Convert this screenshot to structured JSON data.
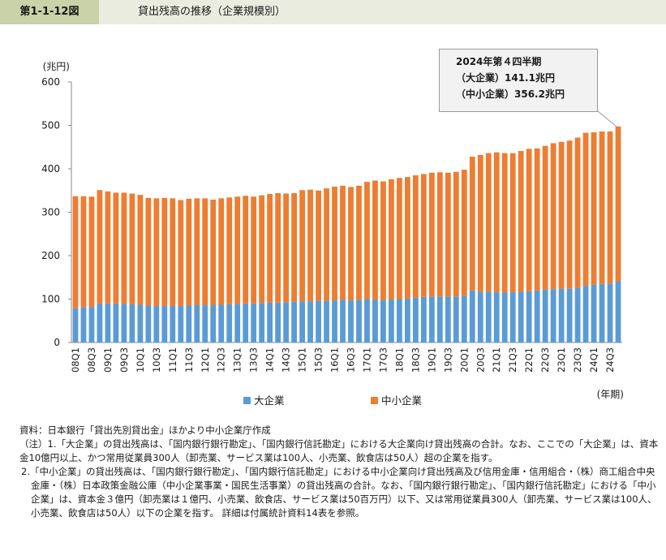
{
  "header": {
    "figure_no": "第1-1-12図",
    "title": "貸出残高の推移（企業規模別）"
  },
  "chart_data": {
    "type": "bar",
    "stacked": true,
    "ylabel": "(兆円)",
    "xlabel": "(年期)",
    "ylim": [
      0,
      600
    ],
    "yticks": [
      0,
      100,
      200,
      300,
      400,
      500,
      600
    ],
    "grid": false,
    "legend_position": "bottom",
    "categories": [
      "08Q1",
      "08Q2",
      "08Q3",
      "08Q4",
      "09Q1",
      "09Q2",
      "09Q3",
      "09Q4",
      "10Q1",
      "10Q2",
      "10Q3",
      "10Q4",
      "11Q1",
      "11Q2",
      "11Q3",
      "11Q4",
      "12Q1",
      "12Q2",
      "12Q3",
      "12Q4",
      "13Q1",
      "13Q2",
      "13Q3",
      "13Q4",
      "14Q1",
      "14Q2",
      "14Q3",
      "14Q4",
      "15Q1",
      "15Q2",
      "15Q3",
      "15Q4",
      "16Q1",
      "16Q2",
      "16Q3",
      "16Q4",
      "17Q1",
      "17Q2",
      "17Q3",
      "17Q4",
      "18Q1",
      "18Q2",
      "18Q3",
      "18Q4",
      "19Q1",
      "19Q2",
      "19Q3",
      "19Q4",
      "20Q1",
      "20Q2",
      "20Q3",
      "20Q4",
      "21Q1",
      "21Q2",
      "21Q3",
      "21Q4",
      "22Q1",
      "22Q2",
      "22Q3",
      "22Q4",
      "23Q1",
      "23Q2",
      "23Q3",
      "23Q4",
      "24Q1",
      "24Q2",
      "24Q3",
      "24Q4"
    ],
    "tick_labels": [
      "08Q1",
      "08Q3",
      "09Q1",
      "09Q3",
      "10Q1",
      "10Q3",
      "11Q1",
      "11Q3",
      "12Q1",
      "12Q3",
      "13Q1",
      "13Q3",
      "14Q1",
      "14Q3",
      "15Q1",
      "15Q3",
      "16Q1",
      "16Q3",
      "17Q1",
      "17Q3",
      "18Q1",
      "18Q3",
      "19Q1",
      "19Q3",
      "20Q1",
      "20Q3",
      "21Q1",
      "21Q3",
      "22Q1",
      "22Q3",
      "23Q1",
      "23Q3",
      "24Q1",
      "24Q3"
    ],
    "series": [
      {
        "name": "大企業",
        "color": "#5b9bd5",
        "values": [
          79,
          81,
          82,
          90,
          90,
          90,
          89,
          88,
          87,
          85,
          84,
          84,
          84,
          84,
          85,
          86,
          86,
          86,
          87,
          88,
          89,
          90,
          90,
          91,
          92,
          92,
          93,
          94,
          95,
          95,
          96,
          96,
          97,
          98,
          97,
          98,
          100,
          99,
          98,
          99,
          100,
          101,
          103,
          105,
          106,
          106,
          106,
          106,
          108,
          120,
          117,
          117,
          116,
          115,
          116,
          117,
          118,
          120,
          122,
          123,
          124,
          124,
          126,
          130,
          133,
          135,
          136,
          141.1
        ]
      },
      {
        "name": "中小企業",
        "color": "#ed7d31",
        "values": [
          258,
          256,
          254,
          261,
          258,
          255,
          256,
          255,
          253,
          248,
          248,
          249,
          248,
          244,
          246,
          246,
          246,
          243,
          245,
          246,
          247,
          248,
          246,
          248,
          250,
          252,
          250,
          250,
          256,
          257,
          254,
          259,
          262,
          263,
          261,
          263,
          270,
          274,
          273,
          277,
          279,
          280,
          282,
          283,
          285,
          286,
          285,
          287,
          290,
          308,
          315,
          319,
          322,
          321,
          320,
          324,
          328,
          327,
          331,
          336,
          338,
          341,
          346,
          353,
          351,
          351,
          350,
          356.2
        ]
      }
    ],
    "annotation": [
      "2024年第４四半期",
      "（大企業）141.1兆円",
      "（中小企業）356.2兆円"
    ]
  },
  "notes": [
    "資料：日本銀行「貸出先別貸出金」ほかより中小企業庁作成",
    "（注）1.「大企業」の貸出残高は、「国内銀行銀行勘定」、「国内銀行信託勘定」における大企業向け貸出残高の合計。なお、ここでの「大企業」は、資本金10億円以上、かつ常用従業員300人（卸売業、サービス業は100人、小売業、飲食店は50人）超の企業を指す。",
    "2.「中小企業」の貸出残高は、「国内銀行銀行勘定」、「国内銀行信託勘定」における中小企業向け貸出残高及び信用金庫・信用組合・（株）商工組合中央金庫・（株）日本政策金融公庫（中小企業事業・国民生活事業）の貸出残高の合計。なお、「国内銀行銀行勘定」、「国内銀行信託勘定」における「中小企業」は、資本金３億円（卸売業は１億円、小売業、飲食店、サービス業は50百万円）以下、又は常用従業員300人（卸売業、サービス業は100人、小売業、飲食店は50人）以下の企業を指す。 詳細は付属統計資料14表を参照。"
  ]
}
